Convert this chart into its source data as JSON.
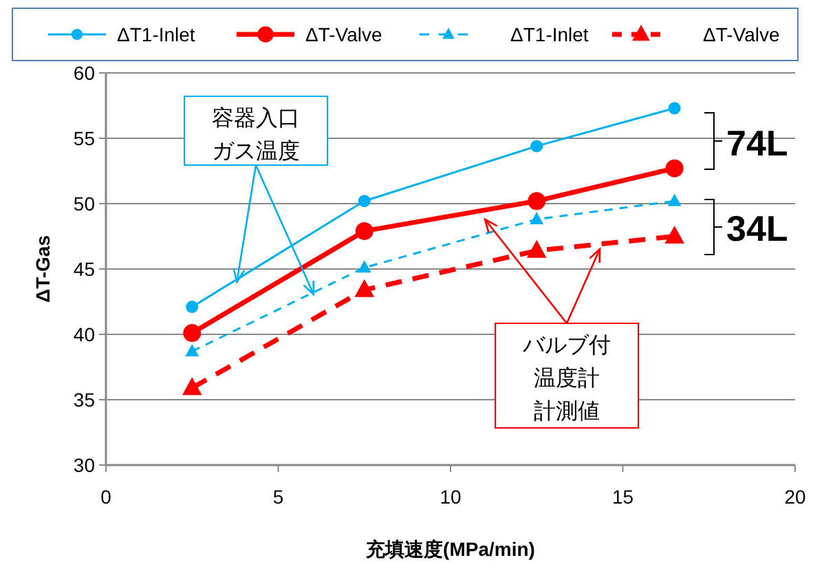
{
  "chart_data": {
    "type": "line",
    "xlabel": "充填速度(MPa/min)",
    "ylabel": "ΔT-Gas",
    "xlim": [
      0,
      20
    ],
    "xticks": [
      0,
      5,
      10,
      15,
      20
    ],
    "ylim": [
      30,
      60
    ],
    "yticks": [
      30,
      35,
      40,
      45,
      50,
      55,
      60
    ],
    "grid": "y",
    "legend": "top",
    "series": [
      {
        "name": "ΔT1-Inlet",
        "color": "#00b0f0",
        "x": [
          2.5,
          7.5,
          12.5,
          16.5
        ],
        "values": [
          42.1,
          50.2,
          54.4,
          57.3
        ],
        "marker": "circle",
        "line_style": "solid"
      },
      {
        "name": "ΔT-Valve",
        "color": "#ff0000",
        "x": [
          2.5,
          7.5,
          12.5,
          16.5
        ],
        "values": [
          40.1,
          47.9,
          50.2,
          52.7
        ],
        "marker": "circle",
        "line_style": "solid"
      },
      {
        "name": "ΔT1-Inlet",
        "color": "#00b0f0",
        "x": [
          2.5,
          7.5,
          12.5,
          16.5
        ],
        "values": [
          38.7,
          45.1,
          48.8,
          50.2
        ],
        "marker": "triangle",
        "line_style": "dashed"
      },
      {
        "name": "ΔT-Valve",
        "color": "#ff0000",
        "x": [
          2.5,
          7.5,
          12.5,
          16.5
        ],
        "values": [
          35.9,
          43.4,
          46.4,
          47.5
        ],
        "marker": "triangle",
        "line_style": "dashed"
      }
    ],
    "annotations": [
      {
        "text": "容器入口ガス温度",
        "x": 3.8,
        "y": 44
      },
      {
        "text": "バルブ付温度計計測値",
        "x": 11,
        "y": 48.8
      },
      "74L",
      "34L"
    ]
  }
}
